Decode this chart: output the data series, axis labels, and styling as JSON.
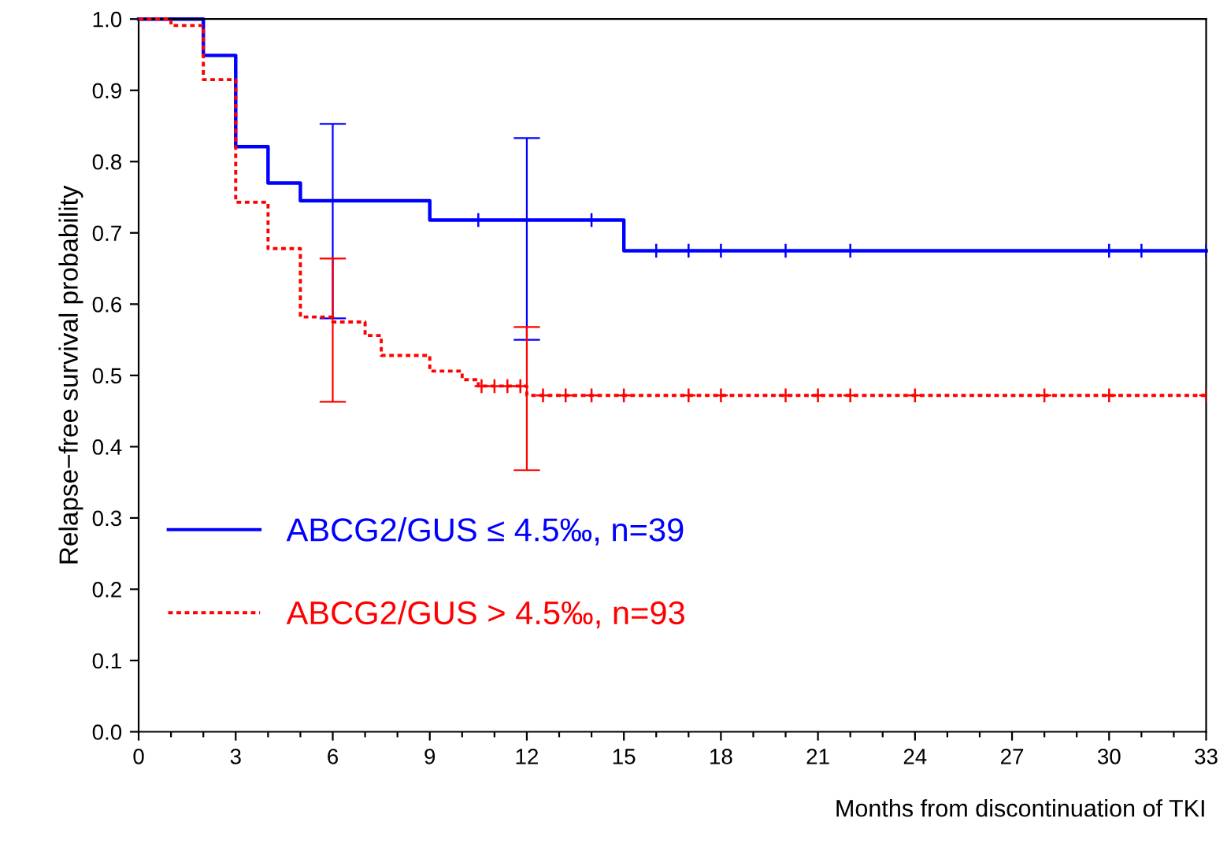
{
  "chart_data": {
    "type": "step",
    "xlabel": "Months from discontinuation of TKI",
    "ylabel": "Relapse−free survival probability",
    "xlim": [
      0,
      33
    ],
    "ylim": [
      0,
      1
    ],
    "xticks": [
      0,
      {
        "value": 1,
        "label": null
      },
      {
        "value": 2,
        "label": null
      },
      3,
      {
        "value": 4,
        "label": null
      },
      {
        "value": 5,
        "label": null
      },
      6,
      {
        "value": 7,
        "label": null
      },
      {
        "value": 8,
        "label": null
      },
      9,
      {
        "value": 10,
        "label": null
      },
      {
        "value": 11,
        "label": null
      },
      12,
      {
        "value": 13,
        "label": null
      },
      {
        "value": 14,
        "label": null
      },
      15,
      {
        "value": 16,
        "label": null
      },
      {
        "value": 17,
        "label": null
      },
      18,
      {
        "value": 19,
        "label": null
      },
      {
        "value": 20,
        "label": null
      },
      21,
      {
        "value": 22,
        "label": null
      },
      {
        "value": 23,
        "label": null
      },
      24,
      {
        "value": 25,
        "label": null
      },
      {
        "value": 26,
        "label": null
      },
      27,
      {
        "value": 28,
        "label": null
      },
      {
        "value": 29,
        "label": null
      },
      30,
      {
        "value": 31,
        "label": null
      },
      {
        "value": 32,
        "label": null
      },
      33
    ],
    "yticks": [
      {
        "value": 0,
        "label": "0.0"
      },
      0.1,
      0.2,
      0.3,
      0.4,
      0.5,
      0.6,
      0.7,
      0.8,
      0.9,
      {
        "value": 1,
        "label": "1.0"
      }
    ],
    "legend": "bottom left",
    "grid": false,
    "series": [
      {
        "name": "ABCG2/GUS ≤ 4.5‰, n=39",
        "color": "#0000ff",
        "line_style": "solid",
        "x": [
          0,
          2,
          3,
          4,
          5,
          6,
          9,
          12,
          15,
          33
        ],
        "values": [
          1.0,
          0.949,
          0.821,
          0.77,
          0.745,
          0.745,
          0.718,
          0.718,
          0.675,
          0.675
        ],
        "errors": [
          null,
          null,
          null,
          null,
          null,
          [
            0.58,
            0.853
          ],
          null,
          [
            0.55,
            0.833
          ],
          null,
          null
        ]
      },
      {
        "name": "ABCG2/GUS > 4.5‰, n=93",
        "color": "#ff0000",
        "line_style": "dotted",
        "x": [
          0,
          1,
          2,
          3,
          4,
          5,
          6,
          7,
          7.5,
          9,
          10,
          10.5,
          12,
          33
        ],
        "values": [
          1.0,
          0.991,
          0.915,
          0.743,
          0.678,
          0.582,
          0.575,
          0.556,
          0.528,
          0.506,
          0.494,
          0.485,
          0.472,
          0.472
        ],
        "errors": [
          null,
          null,
          null,
          null,
          null,
          null,
          [
            0.463,
            0.664
          ],
          null,
          null,
          null,
          null,
          null,
          [
            0.367,
            0.568
          ],
          null
        ]
      },
      {
        "type": "scatter",
        "marker": "cross",
        "color": "#0000ff",
        "x": [
          10.5,
          14,
          16,
          17,
          18,
          20,
          22,
          30,
          31,
          33
        ],
        "values": [
          0.718,
          0.718,
          0.675,
          0.675,
          0.675,
          0.675,
          0.675,
          0.675,
          0.675,
          0.675
        ]
      },
      {
        "type": "scatter",
        "marker": "cross",
        "color": "#ff0000",
        "x": [
          10.6,
          11,
          11.4,
          11.8,
          12.5,
          13.2,
          14,
          15,
          17,
          18,
          20,
          21,
          22,
          24,
          28,
          30,
          33
        ],
        "values": [
          0.485,
          0.485,
          0.485,
          0.485,
          0.472,
          0.472,
          0.472,
          0.472,
          0.472,
          0.472,
          0.472,
          0.472,
          0.472,
          0.472,
          0.472,
          0.472,
          0.472
        ]
      }
    ]
  }
}
